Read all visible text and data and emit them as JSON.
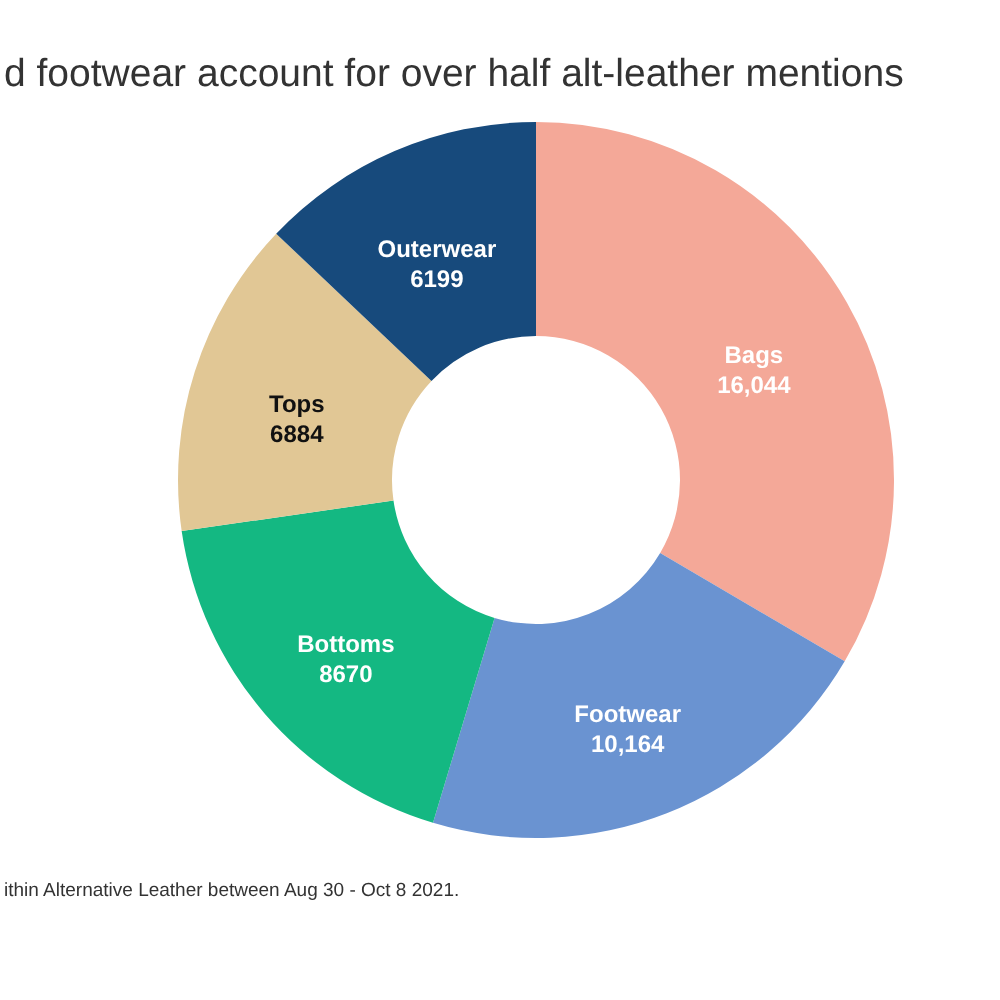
{
  "chart_data": {
    "type": "donut",
    "title": "d footwear account for over half alt-leather mentions",
    "categories": [
      "Bags",
      "Footwear",
      "Bottoms",
      "Tops",
      "Outerwear"
    ],
    "values": [
      16044,
      10164,
      8670,
      6884,
      6199
    ],
    "value_labels": [
      "16,044",
      "10,164",
      "8670",
      "6884",
      "6199"
    ],
    "colors": [
      "#f4a898",
      "#6a93d1",
      "#14b882",
      "#e1c795",
      "#174a7c"
    ],
    "annotations": [
      "ithin Alternative Leather between Aug 30 - Oct 8 2021."
    ]
  }
}
